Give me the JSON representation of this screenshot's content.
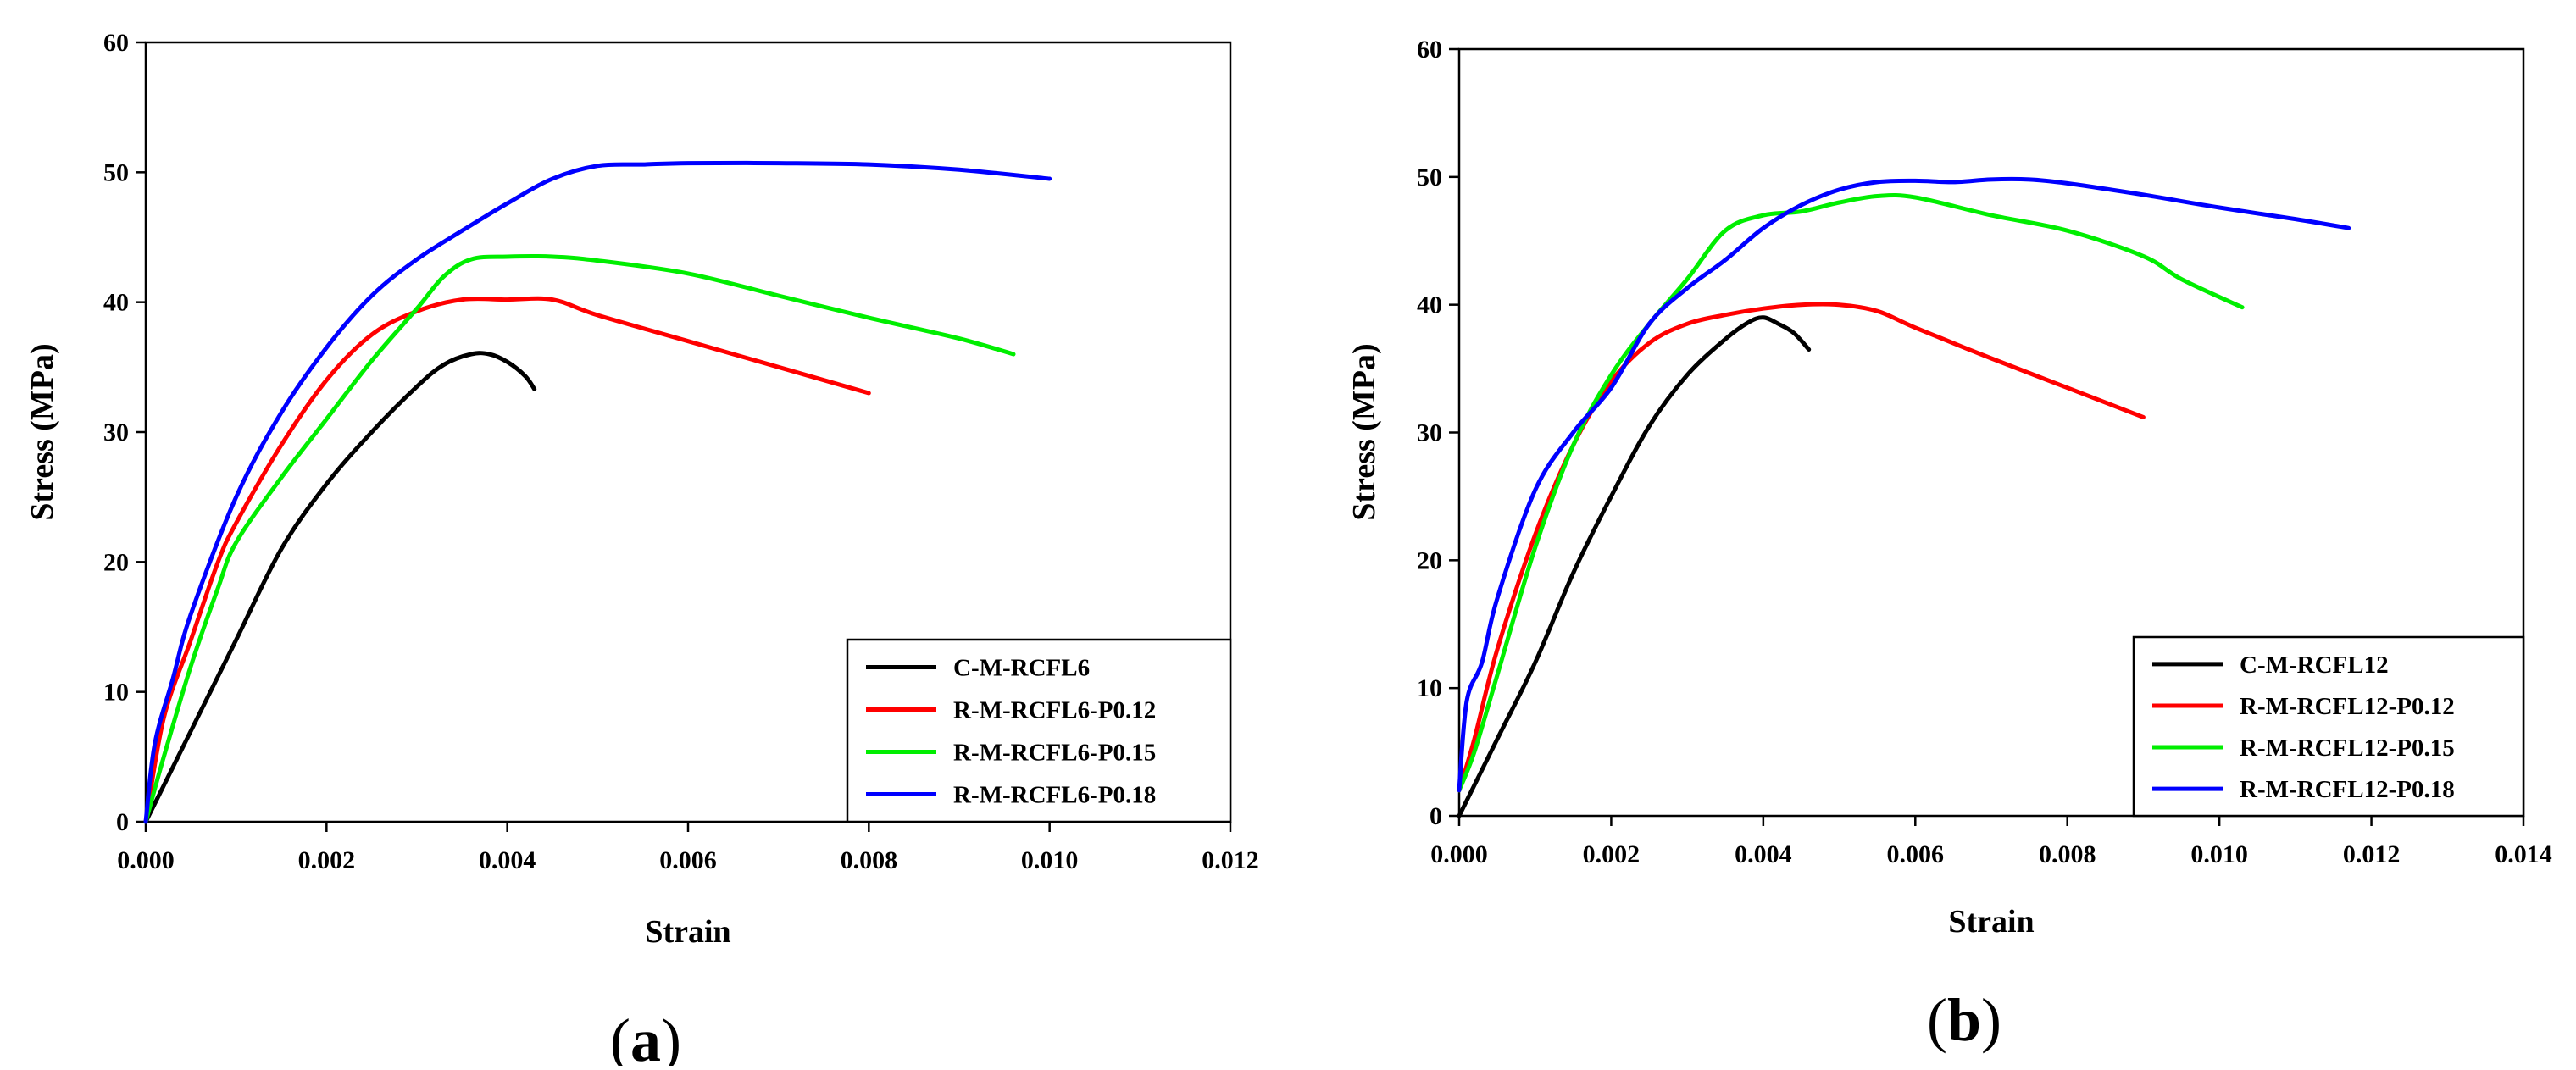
{
  "chart_data": [
    {
      "type": "line",
      "panel_label": "a",
      "xlabel": "Strain",
      "ylabel": "Stress (MPa)",
      "xlim": [
        0,
        0.012
      ],
      "ylim": [
        0,
        60
      ],
      "xticks": [
        "0.000",
        "0.002",
        "0.004",
        "0.006",
        "0.008",
        "0.010",
        "0.012"
      ],
      "yticks": [
        "0",
        "10",
        "20",
        "30",
        "40",
        "50",
        "60"
      ],
      "grid": false,
      "legend_position": "bottom-right",
      "series": [
        {
          "name": "C-M-RCFL6",
          "color": "#000000",
          "x": [
            0,
            0.0005,
            0.001,
            0.0015,
            0.002,
            0.0025,
            0.003,
            0.0033,
            0.0036,
            0.0038,
            0.004,
            0.0042,
            0.0043
          ],
          "y": [
            0,
            7,
            14,
            21,
            26,
            30,
            33.5,
            35.2,
            36,
            36,
            35.4,
            34.3,
            33.3
          ]
        },
        {
          "name": "R-M-RCFL6-P0.12",
          "color": "#ff0000",
          "x": [
            0,
            0.0002,
            0.0005,
            0.0008,
            0.001,
            0.0015,
            0.002,
            0.0025,
            0.003,
            0.0035,
            0.004,
            0.0045,
            0.005,
            0.006,
            0.007,
            0.008
          ],
          "y": [
            0,
            8,
            14,
            20,
            23,
            29,
            34,
            37.5,
            39.3,
            40.2,
            40.2,
            40.2,
            39,
            37,
            35,
            33
          ]
        },
        {
          "name": "R-M-RCFL6-P0.15",
          "color": "#00ee00",
          "x": [
            0,
            0.0002,
            0.0005,
            0.0008,
            0.001,
            0.0015,
            0.002,
            0.0025,
            0.003,
            0.0033,
            0.0036,
            0.004,
            0.0045,
            0.005,
            0.006,
            0.007,
            0.008,
            0.009,
            0.0096
          ],
          "y": [
            0,
            5,
            12,
            18,
            21.5,
            26.5,
            31,
            35.5,
            39.5,
            42,
            43.3,
            43.5,
            43.5,
            43.2,
            42.2,
            40.5,
            38.8,
            37.2,
            36
          ]
        },
        {
          "name": "R-M-RCFL6-P0.18",
          "color": "#0000ff",
          "x": [
            0,
            0.0001,
            0.0003,
            0.0005,
            0.001,
            0.0015,
            0.002,
            0.0025,
            0.003,
            0.0035,
            0.004,
            0.0045,
            0.005,
            0.0055,
            0.006,
            0.007,
            0.008,
            0.009,
            0.01
          ],
          "y": [
            0,
            6,
            11,
            16,
            25,
            31.5,
            36.5,
            40.5,
            43.3,
            45.5,
            47.6,
            49.5,
            50.5,
            50.6,
            50.7,
            50.7,
            50.6,
            50.2,
            49.5
          ]
        }
      ]
    },
    {
      "type": "line",
      "panel_label": "b",
      "xlabel": "Strain",
      "ylabel": "Stress (MPa)",
      "xlim": [
        0,
        0.014
      ],
      "ylim": [
        0,
        60
      ],
      "xticks": [
        "0.000",
        "0.002",
        "0.004",
        "0.006",
        "0.008",
        "0.010",
        "0.012",
        "0.014"
      ],
      "yticks": [
        "0",
        "10",
        "20",
        "30",
        "40",
        "50",
        "60"
      ],
      "grid": false,
      "legend_position": "bottom-right",
      "series": [
        {
          "name": "C-M-RCFL12",
          "color": "#000000",
          "x": [
            0,
            0.0005,
            0.001,
            0.0015,
            0.002,
            0.0025,
            0.003,
            0.0035,
            0.0038,
            0.004,
            0.0042,
            0.0044,
            0.0046
          ],
          "y": [
            0,
            6,
            12,
            19,
            25,
            30.5,
            34.5,
            37.3,
            38.6,
            39,
            38.5,
            37.8,
            36.5
          ]
        },
        {
          "name": "R-M-RCFL12-P0.12",
          "color": "#ff0000",
          "x": [
            0,
            0.0002,
            0.0005,
            0.001,
            0.0015,
            0.002,
            0.0025,
            0.003,
            0.0035,
            0.004,
            0.0045,
            0.005,
            0.0055,
            0.006,
            0.007,
            0.008,
            0.009
          ],
          "y": [
            2,
            6,
            13,
            22,
            29,
            34,
            37,
            38.5,
            39.2,
            39.7,
            40,
            40,
            39.5,
            38.2,
            35.8,
            33.5,
            31.2
          ]
        },
        {
          "name": "R-M-RCFL12-P0.15",
          "color": "#00ee00",
          "x": [
            0,
            0.0002,
            0.0005,
            0.001,
            0.0015,
            0.002,
            0.0025,
            0.003,
            0.0035,
            0.004,
            0.0045,
            0.005,
            0.0055,
            0.006,
            0.007,
            0.008,
            0.009,
            0.0095,
            0.0103
          ],
          "y": [
            2,
            5,
            11,
            21,
            29,
            34.5,
            38.5,
            42,
            45.8,
            47,
            47.3,
            48,
            48.5,
            48.4,
            47,
            45.8,
            43.8,
            42,
            39.8
          ]
        },
        {
          "name": "R-M-RCFL12-P0.18",
          "color": "#0000ff",
          "x": [
            0,
            0.0001,
            0.0003,
            0.0005,
            0.001,
            0.0015,
            0.002,
            0.0025,
            0.003,
            0.0035,
            0.004,
            0.0045,
            0.005,
            0.0055,
            0.006,
            0.0065,
            0.007,
            0.0075,
            0.008,
            0.009,
            0.01,
            0.011,
            0.0117
          ],
          "y": [
            2,
            9,
            12,
            17,
            25.5,
            30,
            33.5,
            38.5,
            41.3,
            43.5,
            46,
            47.8,
            49,
            49.6,
            49.7,
            49.6,
            49.8,
            49.8,
            49.5,
            48.6,
            47.6,
            46.7,
            46
          ]
        }
      ]
    }
  ]
}
